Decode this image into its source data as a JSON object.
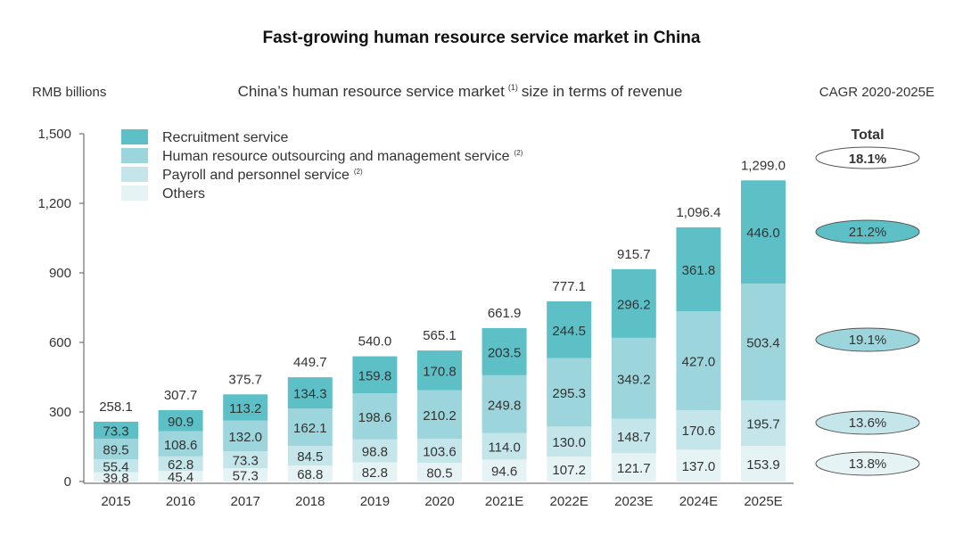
{
  "chart_data": {
    "type": "bar",
    "stacked": true,
    "title": "Fast-growing human resource service market in China",
    "subtitle": "China’s human resource service market",
    "subtitle_superscript": "(1)",
    "subtitle_suffix": "size in terms of revenue",
    "ylabel": "RMB billions",
    "ylim": [
      0,
      1500
    ],
    "yticks": [
      "0",
      "300",
      "600",
      "900",
      "1,200",
      "1,500"
    ],
    "ytick_values": [
      0,
      300,
      600,
      900,
      1200,
      1500
    ],
    "categories": [
      "2015",
      "2016",
      "2017",
      "2018",
      "2019",
      "2020",
      "2021E",
      "2022E",
      "2023E",
      "2024E",
      "2025E"
    ],
    "series": [
      {
        "name": "Others",
        "color": "#e6f3f5",
        "values": [
          39.8,
          45.4,
          57.3,
          68.8,
          82.8,
          80.5,
          94.6,
          107.2,
          121.7,
          137.0,
          153.9
        ],
        "labels": [
          "39.8",
          "45.4",
          "57.3",
          "68.8",
          "82.8",
          "80.5",
          "94.6",
          "107.2",
          "121.7",
          "137.0",
          "153.9"
        ]
      },
      {
        "name": "Payroll and personnel service",
        "sup": "(2)",
        "color": "#c4e6ea",
        "values": [
          55.4,
          62.8,
          73.3,
          84.5,
          98.8,
          103.6,
          114.0,
          130.0,
          148.7,
          170.6,
          195.7
        ],
        "labels": [
          "55.4",
          "62.8",
          "73.3",
          "84.5",
          "98.8",
          "103.6",
          "114.0",
          "130.0",
          "148.7",
          "170.6",
          "195.7"
        ]
      },
      {
        "name": "Human resource outsourcing and management service",
        "sup": "(2)",
        "color": "#9dd5dc",
        "values": [
          89.5,
          108.6,
          132.0,
          162.1,
          198.6,
          210.2,
          249.8,
          295.3,
          349.2,
          427.0,
          503.4
        ],
        "labels": [
          "89.5",
          "108.6",
          "132.0",
          "162.1",
          "198.6",
          "210.2",
          "249.8",
          "295.3",
          "349.2",
          "427.0",
          "503.4"
        ]
      },
      {
        "name": "Recruitment service",
        "sup": "",
        "color": "#5ec0c7",
        "values": [
          73.3,
          90.9,
          113.2,
          134.3,
          159.8,
          170.8,
          203.5,
          244.5,
          296.2,
          361.8,
          446.0
        ],
        "labels": [
          "73.3",
          "90.9",
          "113.2",
          "134.3",
          "159.8",
          "170.8",
          "203.5",
          "244.5",
          "296.2",
          "361.8",
          "446.0"
        ]
      }
    ],
    "totals": [
      258.1,
      307.7,
      375.7,
      449.7,
      540.0,
      565.1,
      661.9,
      777.1,
      915.7,
      1096.4,
      1299.0
    ],
    "total_labels": [
      "258.1",
      "307.7",
      "375.7",
      "449.7",
      "540.0",
      "565.1",
      "661.9",
      "777.1",
      "915.7",
      "1,096.4",
      "1,299.0"
    ],
    "legend": [
      "Recruitment service",
      "Human resource outsourcing and management service",
      "Payroll and personnel service",
      "Others"
    ],
    "legend_position": "top-left",
    "cagr": {
      "header": "CAGR 2020-2025E",
      "total_label": "Total",
      "total_value": "18.1%",
      "items": [
        {
          "series": "Recruitment service",
          "value": "21.2%",
          "color": "#5ec0c7"
        },
        {
          "series": "Human resource outsourcing and management service",
          "value": "19.1%",
          "color": "#9dd5dc"
        },
        {
          "series": "Payroll and personnel service",
          "value": "13.6%",
          "color": "#c4e6ea"
        },
        {
          "series": "Others",
          "value": "13.8%",
          "color": "#e6f3f5"
        }
      ]
    }
  }
}
